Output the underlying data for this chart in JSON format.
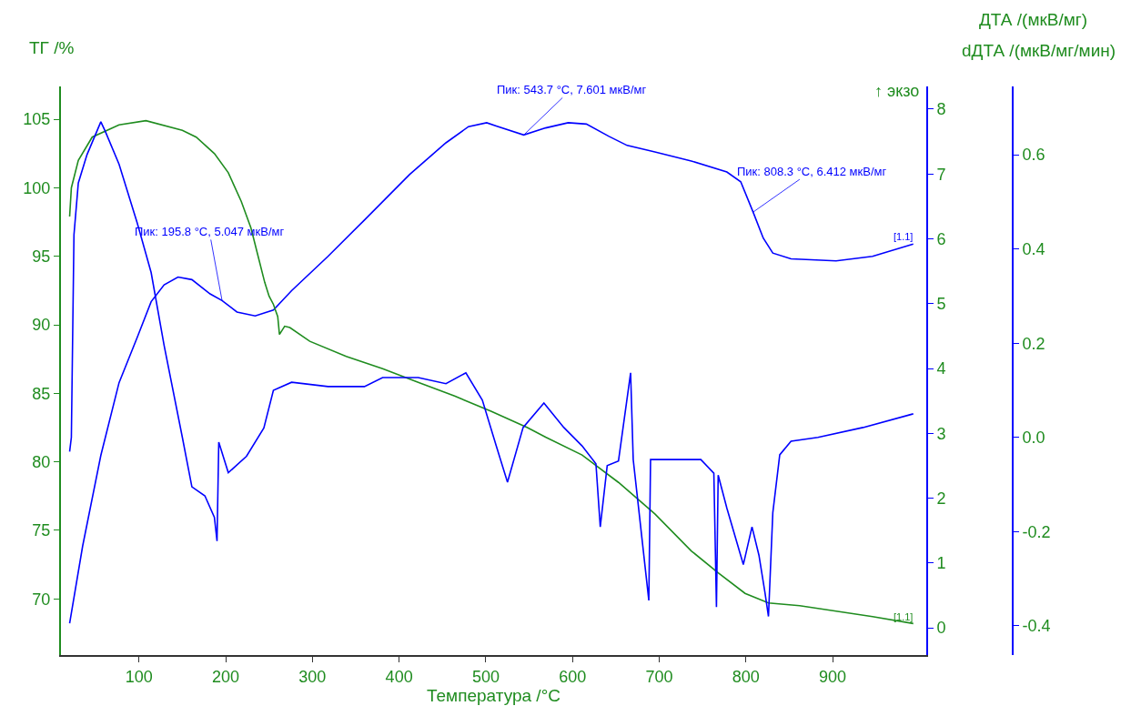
{
  "chart_data": {
    "type": "line",
    "xlabel": "Температура /°C",
    "ylabel": "ДТА /(мкВ/мг)",
    "y2label": "ТГ /%",
    "y3label": "dДТА /(мкВ/мг/мин)",
    "xlim": [
      10,
      1008
    ],
    "xticks": [
      100,
      200,
      300,
      400,
      500,
      600,
      700,
      800,
      900
    ],
    "ylim": [
      -0.42,
      8.35
    ],
    "yticks": [
      0,
      1,
      2,
      3,
      4,
      5,
      6,
      7,
      8
    ],
    "y2lim": [
      65.9,
      107.4
    ],
    "y2ticks": [
      70,
      75,
      80,
      85,
      90,
      95,
      100,
      105
    ],
    "y3lim": [
      -0.462,
      0.745
    ],
    "y3ticks": [
      -0.4,
      -0.2,
      {
        "value": 0,
        "label": "0.0"
      },
      0.2,
      0.4,
      0.6
    ],
    "marker": "none",
    "line_style": "solid",
    "series": [
      {
        "color": "#1f8c1f",
        "axis": "y2",
        "x": [
          20,
          22,
          30,
          46,
          77,
          108,
          150,
          166,
          187,
          203,
          218,
          229,
          237,
          245,
          250,
          255,
          260,
          262,
          268,
          274,
          297,
          339,
          381,
          422,
          464,
          506,
          548,
          569,
          611,
          653,
          695,
          737,
          768,
          799,
          826,
          862,
          904,
          946,
          993
        ],
        "values": [
          97.9,
          100.0,
          102.0,
          103.7,
          104.6,
          104.9,
          104.2,
          103.7,
          102.5,
          101.1,
          99.0,
          97.1,
          95.1,
          93.1,
          92.1,
          91.5,
          90.6,
          89.3,
          89.9,
          89.8,
          88.8,
          87.7,
          86.8,
          85.8,
          84.8,
          83.7,
          82.5,
          81.8,
          80.5,
          78.5,
          76.2,
          73.5,
          71.9,
          70.4,
          69.7,
          69.5,
          69.1,
          68.7,
          68.2
        ]
      },
      {
        "color": "#0000ff",
        "x": [
          20,
          35,
          56,
          77,
          98,
          114,
          129,
          145,
          161,
          182,
          195.8,
          213,
          234,
          255,
          276,
          318,
          360,
          412,
          454,
          480,
          501,
          512,
          543.7,
          569,
          595,
          616,
          642,
          663,
          695,
          737,
          778,
          794,
          808.3,
          820,
          831,
          852,
          904,
          946,
          993
        ],
        "values": [
          0.07,
          1.26,
          2.66,
          3.78,
          4.48,
          5.03,
          5.29,
          5.41,
          5.37,
          5.15,
          5.047,
          4.87,
          4.81,
          4.9,
          5.2,
          5.73,
          6.29,
          6.99,
          7.48,
          7.73,
          7.79,
          7.74,
          7.601,
          7.71,
          7.79,
          7.77,
          7.58,
          7.44,
          7.34,
          7.2,
          7.03,
          6.88,
          6.412,
          6.01,
          5.78,
          5.69,
          5.66,
          5.73,
          5.92
        ]
      },
      {
        "color": "#0000ff",
        "axis": "y3",
        "x": [
          20,
          22,
          25,
          30,
          40,
          56,
          61,
          77,
          98,
          114,
          129,
          150,
          161,
          176,
          187,
          190,
          192,
          203,
          224,
          244,
          255,
          276,
          318,
          360,
          381,
          422,
          454,
          477,
          496,
          512,
          525,
          543,
          567,
          590,
          611,
          627,
          632,
          640,
          653,
          667,
          670,
          688,
          690,
          716,
          748,
          763,
          766,
          768,
          778,
          797,
          807,
          815,
          822,
          826,
          831,
          839,
          852,
          883,
          935,
          993
        ],
        "values": [
          -0.03,
          0.0,
          0.43,
          0.54,
          0.6,
          0.67,
          0.65,
          0.58,
          0.455,
          0.35,
          0.195,
          0.0,
          -0.105,
          -0.124,
          -0.17,
          -0.22,
          -0.01,
          -0.075,
          -0.04,
          0.02,
          0.1,
          0.117,
          0.108,
          0.108,
          0.127,
          0.127,
          0.114,
          0.137,
          0.079,
          -0.018,
          -0.095,
          0.021,
          0.073,
          0.021,
          -0.018,
          -0.056,
          -0.19,
          -0.06,
          -0.05,
          0.137,
          -0.047,
          -0.346,
          -0.047,
          -0.047,
          -0.047,
          -0.076,
          -0.36,
          -0.08,
          -0.15,
          -0.27,
          -0.19,
          -0.25,
          -0.33,
          -0.38,
          -0.16,
          -0.037,
          -0.008,
          -0.0,
          0.021,
          0.05
        ]
      }
    ],
    "annotations": [
      {
        "text": "Пик: 195.8 °C, 5.047 мкВ/мг",
        "x": 195.8,
        "y": 5.047
      },
      {
        "text": "Пик: 543.7 °C, 7.601 мкВ/мг",
        "x": 543.7,
        "y": 7.601
      },
      {
        "text": "Пик: 808.3 °C, 6.412 мкВ/мг",
        "x": 808.3,
        "y": 6.412
      },
      "↑ экзо",
      "[1.1]",
      "[1.1]"
    ]
  }
}
